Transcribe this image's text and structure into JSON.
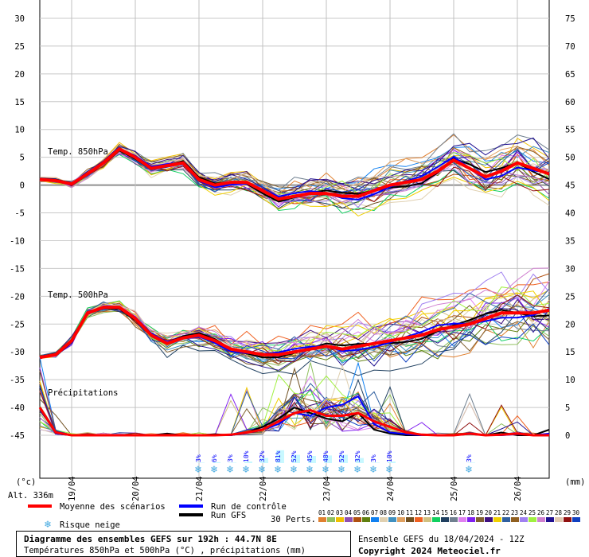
{
  "chart_data": {
    "type": "line",
    "title": "Diagramme des ensembles GEFS sur 192h : 44.7N 8E",
    "subtitle": "Températures 850hPa et 500hPa (°C) , précipitations (mm)",
    "run_info": "Ensemble GEFS du 18/04/2024 - 12Z",
    "copyright": "Copyright 2024 Meteociel.fr",
    "left_unit": "(°c)",
    "right_unit": "(mm)",
    "altitude": "Alt. 336m",
    "left_axis": {
      "range": [
        -45,
        30
      ],
      "ticks": [
        "30",
        "25",
        "20",
        "15",
        "10",
        "5",
        "0",
        "-5",
        "-10",
        "-15",
        "-20",
        "-25",
        "-30",
        "-35",
        "-40",
        "-45"
      ]
    },
    "right_axis": {
      "range": [
        0,
        75
      ],
      "ticks": [
        "75",
        "70",
        "65",
        "60",
        "55",
        "50",
        "45",
        "40",
        "35",
        "30",
        "25",
        "20",
        "15",
        "10",
        "5",
        "0"
      ]
    },
    "x_hours": 192,
    "step_hours": 6,
    "date_labels": [
      "19/04",
      "20/04",
      "21/04",
      "22/04",
      "23/04",
      "24/04",
      "25/04",
      "26/04"
    ],
    "section_labels": {
      "t850": "Temp. 850hPa",
      "t500": "Temp. 500hPa",
      "precip": "Précipitations"
    },
    "t850_mean": [
      1,
      0.8,
      0.2,
      2,
      4,
      6.5,
      5,
      3,
      3.5,
      4,
      1,
      0,
      0.5,
      0.5,
      -1,
      -2.5,
      -2,
      -1.5,
      -1.5,
      -2,
      -2,
      -1,
      0,
      0.5,
      1,
      2.5,
      4.5,
      3,
      1.5,
      2.5,
      4,
      3,
      2
    ],
    "t500_mean": [
      -31,
      -30.5,
      -28,
      -23,
      -22,
      -22,
      -24,
      -27,
      -28.5,
      -27.5,
      -27,
      -28,
      -29.5,
      -30,
      -30.5,
      -30.5,
      -30,
      -29.5,
      -29,
      -29.5,
      -29,
      -28.5,
      -28,
      -27.5,
      -27,
      -26,
      -25.5,
      -25,
      -24,
      -23,
      -23,
      -23,
      -22.5
    ],
    "precip_mean": [
      5,
      0.5,
      0,
      0,
      0,
      0,
      0,
      0,
      0,
      0,
      0,
      0,
      0.1,
      0.5,
      1,
      2.5,
      4,
      4.5,
      3.5,
      3.5,
      4,
      2.5,
      1.5,
      0.5,
      0.1,
      0,
      0,
      0.3,
      0,
      0.1,
      0.3,
      0,
      0
    ],
    "precip_control": [
      5,
      0.3,
      0,
      0,
      0,
      0,
      0,
      0,
      0,
      0,
      0,
      0,
      0,
      0.5,
      1,
      2,
      4,
      3.5,
      5,
      5.5,
      7,
      2,
      0.5,
      0.2,
      0,
      0,
      0,
      0.2,
      0,
      0,
      0.2,
      0,
      0.3
    ],
    "precip_gfs": [
      5,
      0.3,
      0,
      0,
      0,
      0,
      0,
      0,
      0.3,
      0,
      0,
      0.2,
      0,
      0.5,
      1.5,
      3,
      5,
      4,
      3,
      2.5,
      4,
      1,
      0.3,
      0,
      0,
      0,
      0,
      0.3,
      0,
      0.5,
      0,
      0,
      1
    ],
    "snow_risk": [
      {
        "step": 10,
        "pct": "3%"
      },
      {
        "step": 11,
        "pct": "6%"
      },
      {
        "step": 12,
        "pct": "3%"
      },
      {
        "step": 13,
        "pct": "10%"
      },
      {
        "step": 14,
        "pct": "32%"
      },
      {
        "step": 15,
        "pct": "81%"
      },
      {
        "step": 16,
        "pct": "52%"
      },
      {
        "step": 17,
        "pct": "45%"
      },
      {
        "step": 18,
        "pct": "48%"
      },
      {
        "step": 19,
        "pct": "52%"
      },
      {
        "step": 20,
        "pct": "32%"
      },
      {
        "step": 21,
        "pct": "3%"
      },
      {
        "step": 22,
        "pct": "10%"
      },
      {
        "step": 27,
        "pct": "3%"
      }
    ],
    "legend": {
      "mean": {
        "label": "Moyenne des scénarios",
        "color": "#ff0000"
      },
      "control": {
        "label": "Run de contrôle",
        "color": "#0000ff"
      },
      "gfs": {
        "label": "Run GFS",
        "color": "#000000"
      },
      "snow": "Risque neige",
      "perts_label": "30 Perts.",
      "perts": [
        "01",
        "02",
        "03",
        "04",
        "05",
        "06",
        "07",
        "08",
        "09",
        "10",
        "11",
        "12",
        "13",
        "14",
        "15",
        "16",
        "17",
        "18",
        "19",
        "20",
        "21",
        "22",
        "23",
        "24",
        "25",
        "26",
        "27",
        "28",
        "29",
        "30"
      ],
      "pert_colors": [
        "#e08030",
        "#90c060",
        "#f0c000",
        "#9050b0",
        "#b05010",
        "#608010",
        "#1080f0",
        "#e0d0b0",
        "#4090c0",
        "#e0a060",
        "#705020",
        "#f06020",
        "#d0c080",
        "#10d060",
        "#204060",
        "#708090",
        "#e080f0",
        "#8020f0",
        "#806030",
        "#401080",
        "#f0d000",
        "#3060a0",
        "#906020",
        "#a080f0",
        "#a0f040",
        "#d080d0",
        "#201090",
        "#e0c8b0",
        "#901010",
        "#1040c0"
      ]
    }
  }
}
